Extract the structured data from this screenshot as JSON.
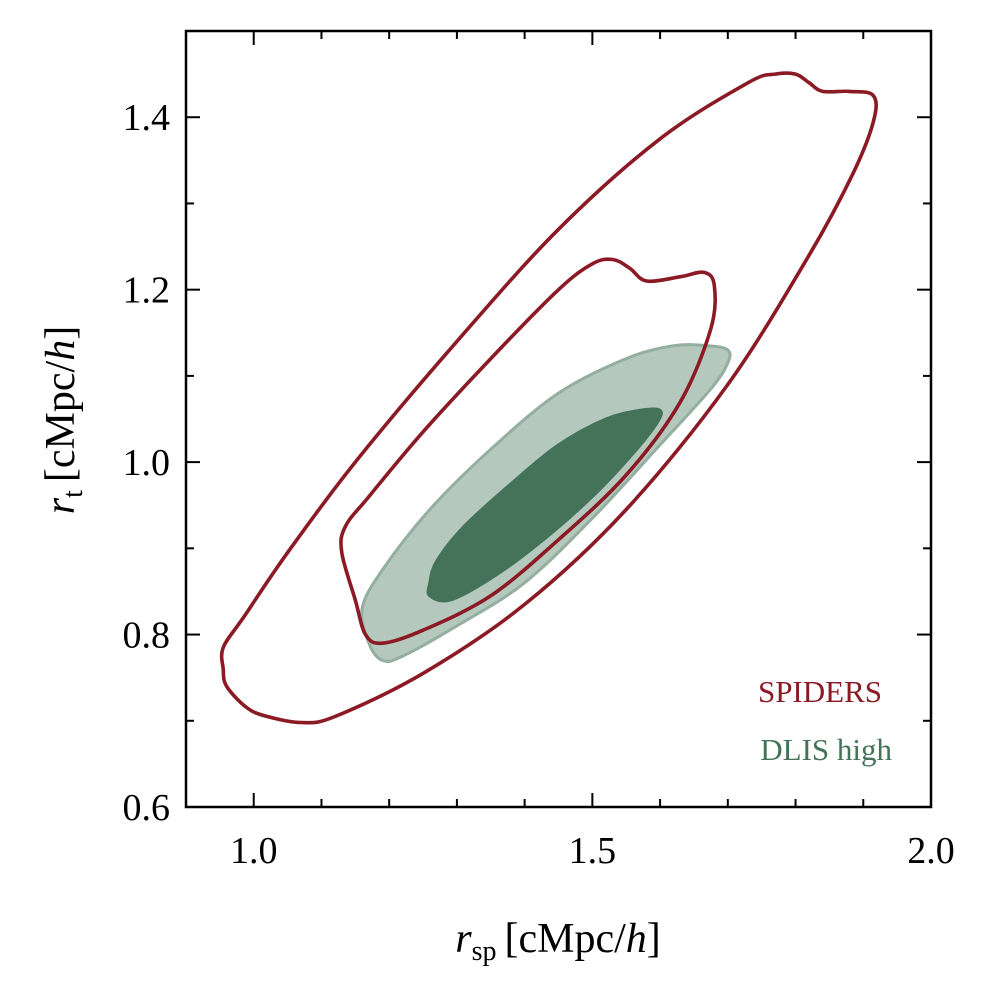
{
  "chart_data": {
    "type": "contour",
    "title": "",
    "xlabel": {
      "var": "r",
      "sub": "sp",
      "unit_pre": "[cMpc/",
      "unit_it": "h",
      "unit_post": "]"
    },
    "ylabel": {
      "var": "r",
      "sub": "t",
      "unit_pre": "[cMpc/",
      "unit_it": "h",
      "unit_post": "]"
    },
    "xlim": [
      0.9,
      2.0
    ],
    "ylim": [
      0.6,
      1.5
    ],
    "xticks": [
      1.0,
      1.5,
      2.0
    ],
    "xtick_labels": [
      "1.0",
      "1.5",
      "2.0"
    ],
    "xminor": [
      1.1,
      1.2,
      1.3,
      1.4,
      1.6,
      1.7,
      1.8,
      1.9
    ],
    "yticks": [
      0.6,
      0.8,
      1.0,
      1.2,
      1.4
    ],
    "ytick_labels": [
      "0.6",
      "0.8",
      "1.0",
      "1.2",
      "1.4"
    ],
    "yminor": [
      0.7,
      0.9,
      1.1,
      1.3
    ],
    "legend_position": "bottom-right",
    "series": [
      {
        "name": "SPIDERS",
        "style": "outline",
        "color": "#8b1a24",
        "contours": [
          {
            "level": "95%",
            "points": [
              [
                0.955,
                0.76
              ],
              [
                0.96,
                0.74
              ],
              [
                0.99,
                0.715
              ],
              [
                1.02,
                0.705
              ],
              [
                1.07,
                0.698
              ],
              [
                1.12,
                0.705
              ],
              [
                1.25,
                0.755
              ],
              [
                1.4,
                0.835
              ],
              [
                1.55,
                0.945
              ],
              [
                1.7,
                1.09
              ],
              [
                1.82,
                1.24
              ],
              [
                1.885,
                1.335
              ],
              [
                1.915,
                1.395
              ],
              [
                1.915,
                1.425
              ],
              [
                1.88,
                1.43
              ],
              [
                1.84,
                1.43
              ],
              [
                1.82,
                1.44
              ],
              [
                1.8,
                1.45
              ],
              [
                1.77,
                1.45
              ],
              [
                1.73,
                1.44
              ],
              [
                1.6,
                1.375
              ],
              [
                1.45,
                1.27
              ],
              [
                1.3,
                1.14
              ],
              [
                1.15,
                1.0
              ],
              [
                1.05,
                0.895
              ],
              [
                0.985,
                0.82
              ],
              [
                0.955,
                0.785
              ]
            ]
          },
          {
            "level": "68%",
            "points": [
              [
                1.13,
                0.895
              ],
              [
                1.15,
                0.84
              ],
              [
                1.165,
                0.8
              ],
              [
                1.19,
                0.79
              ],
              [
                1.25,
                0.805
              ],
              [
                1.35,
                0.845
              ],
              [
                1.45,
                0.91
              ],
              [
                1.55,
                0.985
              ],
              [
                1.63,
                1.07
              ],
              [
                1.675,
                1.155
              ],
              [
                1.68,
                1.205
              ],
              [
                1.665,
                1.22
              ],
              [
                1.63,
                1.215
              ],
              [
                1.58,
                1.21
              ],
              [
                1.555,
                1.225
              ],
              [
                1.53,
                1.235
              ],
              [
                1.5,
                1.23
              ],
              [
                1.45,
                1.2
              ],
              [
                1.35,
                1.12
              ],
              [
                1.25,
                1.035
              ],
              [
                1.17,
                0.96
              ],
              [
                1.135,
                0.925
              ]
            ]
          }
        ]
      },
      {
        "name": "DLIS high",
        "style": "filled",
        "color": "#44735a",
        "contours": [
          {
            "level": "95%",
            "fill": "#b4c8bd",
            "stroke": "#94ae9f",
            "points": [
              [
                1.16,
                0.83
              ],
              [
                1.17,
                0.79
              ],
              [
                1.19,
                0.77
              ],
              [
                1.22,
                0.775
              ],
              [
                1.3,
                0.81
              ],
              [
                1.4,
                0.86
              ],
              [
                1.5,
                0.935
              ],
              [
                1.6,
                1.02
              ],
              [
                1.675,
                1.085
              ],
              [
                1.7,
                1.115
              ],
              [
                1.7,
                1.13
              ],
              [
                1.67,
                1.135
              ],
              [
                1.62,
                1.135
              ],
              [
                1.55,
                1.12
              ],
              [
                1.45,
                1.08
              ],
              [
                1.35,
                1.015
              ],
              [
                1.26,
                0.945
              ],
              [
                1.19,
                0.875
              ]
            ]
          },
          {
            "level": "68%",
            "fill": "#44735a",
            "stroke": "#44735a",
            "points": [
              [
                1.26,
                0.845
              ],
              [
                1.29,
                0.84
              ],
              [
                1.35,
                0.865
              ],
              [
                1.42,
                0.905
              ],
              [
                1.5,
                0.96
              ],
              [
                1.56,
                1.01
              ],
              [
                1.595,
                1.045
              ],
              [
                1.6,
                1.06
              ],
              [
                1.57,
                1.06
              ],
              [
                1.52,
                1.05
              ],
              [
                1.45,
                1.02
              ],
              [
                1.38,
                0.975
              ],
              [
                1.31,
                0.925
              ],
              [
                1.27,
                0.885
              ],
              [
                1.26,
                0.86
              ]
            ]
          }
        ]
      }
    ]
  }
}
